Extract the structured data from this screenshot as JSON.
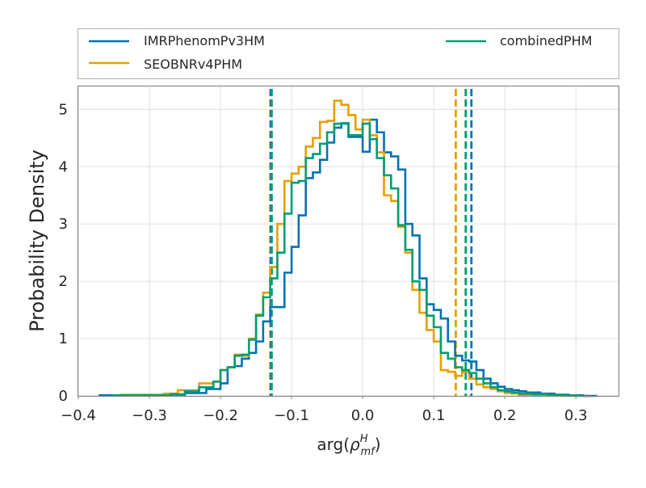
{
  "chart_data": {
    "type": "histogram",
    "xlabel_prefix": "arg(",
    "xlabel_symbol": "ρ",
    "xlabel_sup": "H",
    "xlabel_sub": "mf",
    "xlabel_suffix": ")",
    "ylabel": "Probability Density",
    "xlim": [
      -0.4,
      0.36
    ],
    "ylim": [
      0,
      5.4
    ],
    "xticks": [
      -0.4,
      -0.3,
      -0.2,
      -0.1,
      0.0,
      0.1,
      0.2,
      0.3
    ],
    "xtick_labels": [
      "−0.4",
      "−0.3",
      "−0.2",
      "−0.1",
      "0.0",
      "0.1",
      "0.2",
      "0.3"
    ],
    "yticks": [
      0,
      1,
      2,
      3,
      4,
      5
    ],
    "ytick_labels": [
      "0",
      "1",
      "2",
      "3",
      "4",
      "5"
    ],
    "grid": true,
    "legend_placement": "above-plot",
    "series": [
      {
        "name": "IMRPhenomPv3HM",
        "color": "#0072b2",
        "edges": [
          -0.37,
          -0.27,
          -0.25,
          -0.22,
          -0.2,
          -0.19,
          -0.18,
          -0.17,
          -0.16,
          -0.15,
          -0.14,
          -0.13,
          -0.12,
          -0.11,
          -0.1,
          -0.09,
          -0.08,
          -0.07,
          -0.06,
          -0.05,
          -0.04,
          -0.03,
          -0.02,
          -0.01,
          0.0,
          0.01,
          0.02,
          0.03,
          0.04,
          0.05,
          0.06,
          0.07,
          0.08,
          0.09,
          0.1,
          0.11,
          0.12,
          0.13,
          0.14,
          0.15,
          0.16,
          0.17,
          0.18,
          0.19,
          0.2,
          0.21,
          0.22,
          0.23,
          0.25,
          0.27,
          0.29,
          0.31,
          0.33
        ],
        "densities": [
          0.01,
          0.02,
          0.05,
          0.12,
          0.22,
          0.5,
          0.52,
          0.65,
          0.75,
          0.95,
          1.3,
          1.55,
          1.55,
          2.15,
          2.6,
          3.15,
          3.8,
          3.9,
          4.12,
          4.42,
          4.68,
          4.75,
          4.52,
          4.52,
          4.26,
          4.82,
          4.6,
          4.25,
          4.18,
          3.95,
          3.0,
          2.8,
          2.05,
          1.6,
          1.5,
          1.35,
          0.95,
          0.7,
          0.62,
          0.6,
          0.45,
          0.3,
          0.22,
          0.16,
          0.12,
          0.1,
          0.08,
          0.06,
          0.04,
          0.02,
          0.01,
          0.0
        ]
      },
      {
        "name": "SEOBNRv4PHM",
        "color": "#e69f00",
        "edges": [
          -0.34,
          -0.28,
          -0.26,
          -0.23,
          -0.21,
          -0.2,
          -0.19,
          -0.18,
          -0.17,
          -0.16,
          -0.15,
          -0.14,
          -0.13,
          -0.12,
          -0.11,
          -0.1,
          -0.09,
          -0.08,
          -0.07,
          -0.06,
          -0.05,
          -0.04,
          -0.03,
          -0.02,
          -0.01,
          0.0,
          0.01,
          0.02,
          0.03,
          0.04,
          0.05,
          0.06,
          0.07,
          0.08,
          0.09,
          0.1,
          0.11,
          0.12,
          0.13,
          0.14,
          0.15,
          0.16,
          0.17,
          0.18,
          0.19,
          0.2,
          0.21,
          0.22,
          0.24,
          0.26,
          0.28,
          0.3
        ],
        "densities": [
          0.02,
          0.04,
          0.1,
          0.22,
          0.25,
          0.45,
          0.5,
          0.72,
          0.7,
          1.0,
          1.42,
          1.8,
          2.25,
          3.0,
          3.75,
          3.88,
          4.0,
          4.35,
          4.5,
          4.78,
          4.8,
          5.15,
          5.08,
          4.9,
          4.65,
          4.82,
          4.55,
          4.25,
          3.5,
          3.4,
          2.95,
          2.5,
          1.85,
          1.45,
          1.15,
          0.95,
          0.45,
          0.42,
          0.35,
          0.42,
          0.3,
          0.2,
          0.15,
          0.12,
          0.08,
          0.05,
          0.04,
          0.02,
          0.01,
          0.01,
          0.0
        ]
      },
      {
        "name": "combinedPHM",
        "color": "#009e73",
        "edges": [
          -0.35,
          -0.27,
          -0.25,
          -0.23,
          -0.21,
          -0.2,
          -0.19,
          -0.18,
          -0.17,
          -0.16,
          -0.15,
          -0.14,
          -0.13,
          -0.12,
          -0.11,
          -0.1,
          -0.09,
          -0.08,
          -0.07,
          -0.06,
          -0.05,
          -0.04,
          -0.03,
          -0.02,
          -0.01,
          0.0,
          0.01,
          0.02,
          0.03,
          0.04,
          0.05,
          0.06,
          0.07,
          0.08,
          0.09,
          0.1,
          0.11,
          0.12,
          0.13,
          0.14,
          0.15,
          0.16,
          0.17,
          0.18,
          0.19,
          0.2,
          0.21,
          0.22,
          0.24,
          0.26,
          0.28,
          0.3,
          0.32
        ],
        "densities": [
          0.01,
          0.03,
          0.08,
          0.15,
          0.25,
          0.45,
          0.5,
          0.7,
          0.72,
          0.98,
          1.4,
          1.72,
          2.05,
          2.5,
          3.18,
          3.72,
          3.75,
          4.15,
          4.22,
          4.4,
          4.6,
          4.75,
          4.76,
          4.55,
          4.55,
          4.75,
          4.48,
          4.15,
          3.85,
          3.62,
          2.98,
          2.55,
          2.0,
          1.85,
          1.4,
          1.2,
          0.75,
          0.65,
          0.5,
          0.45,
          0.4,
          0.3,
          0.22,
          0.15,
          0.1,
          0.08,
          0.06,
          0.04,
          0.03,
          0.02,
          0.01,
          0.0
        ]
      }
    ],
    "vlines": [
      {
        "x": -0.13,
        "color": "#e69f00"
      },
      {
        "x": -0.129,
        "color": "#0072b2"
      },
      {
        "x": -0.128,
        "color": "#009e73"
      },
      {
        "x": 0.131,
        "color": "#e69f00"
      },
      {
        "x": 0.145,
        "color": "#009e73"
      },
      {
        "x": 0.153,
        "color": "#0072b2"
      }
    ]
  }
}
